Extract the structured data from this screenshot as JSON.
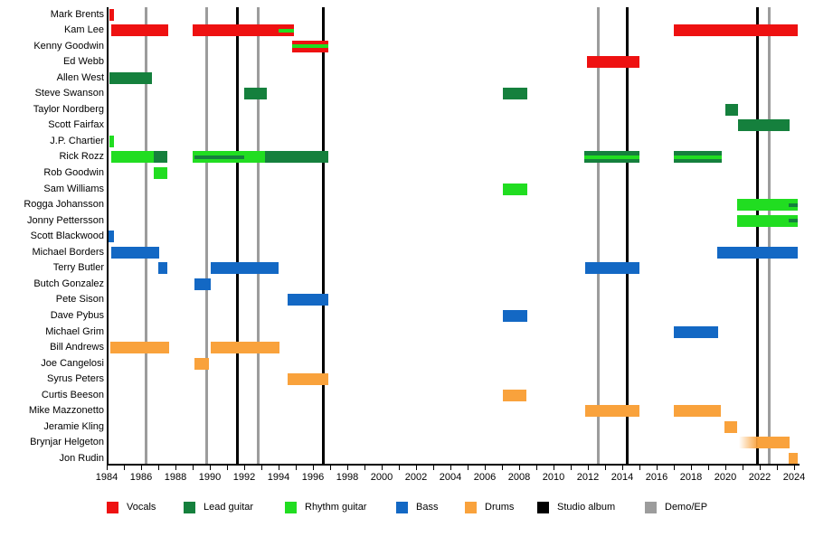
{
  "chart_data": {
    "type": "bar",
    "subtype": "horizontal-range-timeline (band lineup gantt)",
    "title": "",
    "xlabel": "",
    "ylabel": "",
    "grid": "vertical event lines only",
    "legend_position": "bottom",
    "x_axis": {
      "min": 1984,
      "max": 2024,
      "labeled_tick_step": 2,
      "minor_tick_step": 1,
      "tick_labels": [
        "1984",
        "1986",
        "1988",
        "1990",
        "1992",
        "1994",
        "1996",
        "1998",
        "2000",
        "2002",
        "2004",
        "2006",
        "2008",
        "2010",
        "2012",
        "2014",
        "2016",
        "2018",
        "2020",
        "2022",
        "2024"
      ]
    },
    "role_colors": {
      "vocals": "#ee1111",
      "lead": "#15803d",
      "rhythm": "#21dd21",
      "bass": "#1368c4",
      "drums": "#f9a23c"
    },
    "event_lines": {
      "studio_album": {
        "color": "#000000",
        "years": [
          1991.6,
          1996.6,
          2014.3,
          2021.85
        ]
      },
      "demo_ep": {
        "color": "#9c9c9c",
        "years": [
          1986.3,
          1989.8,
          1992.8,
          2012.6,
          2022.55
        ]
      }
    },
    "legend": [
      {
        "label": "Vocals",
        "color": "#ee1111"
      },
      {
        "label": "Lead guitar",
        "color": "#15803d"
      },
      {
        "label": "Rhythm guitar",
        "color": "#21dd21"
      },
      {
        "label": "Bass",
        "color": "#1368c4"
      },
      {
        "label": "Drums",
        "color": "#f9a23c"
      },
      {
        "label": "Studio album",
        "color": "#000000"
      },
      {
        "label": "Demo/EP",
        "color": "#9c9c9c"
      }
    ],
    "members": [
      {
        "name": "Mark Brents",
        "segments": [
          {
            "role": "vocals",
            "start": 1984.15,
            "end": 1984.4
          }
        ]
      },
      {
        "name": "Kam Lee",
        "segments": [
          {
            "role": "vocals",
            "start": 1984.25,
            "end": 1987.6
          },
          {
            "role": "vocals",
            "start": 1989.0,
            "end": 1994.9,
            "overlay": {
              "role": "rhythm",
              "start": 1994.0,
              "end": 1994.9
            }
          },
          {
            "role": "vocals",
            "start": 2017.0,
            "end": 2024.2
          }
        ]
      },
      {
        "name": "Kenny Goodwin",
        "segments": [
          {
            "role": "vocals",
            "start": 1994.8,
            "end": 1996.9,
            "overlay": {
              "role": "rhythm",
              "start": 1994.8,
              "end": 1996.9
            }
          }
        ]
      },
      {
        "name": "Ed Webb",
        "segments": [
          {
            "role": "vocals",
            "start": 2011.95,
            "end": 2015.0
          }
        ]
      },
      {
        "name": "Allen West",
        "segments": [
          {
            "role": "lead",
            "start": 1984.15,
            "end": 1986.65
          }
        ]
      },
      {
        "name": "Steve Swanson",
        "segments": [
          {
            "role": "lead",
            "start": 1992.0,
            "end": 1993.3
          },
          {
            "role": "lead",
            "start": 2007.05,
            "end": 2008.45
          }
        ]
      },
      {
        "name": "Taylor Nordberg",
        "segments": [
          {
            "role": "lead",
            "start": 2020.0,
            "end": 2020.75
          }
        ]
      },
      {
        "name": "Scott Fairfax",
        "segments": [
          {
            "role": "lead",
            "start": 2020.75,
            "end": 2023.75
          }
        ]
      },
      {
        "name": "J.P. Chartier",
        "segments": [
          {
            "role": "rhythm",
            "start": 1984.15,
            "end": 1984.4
          }
        ]
      },
      {
        "name": "Rick Rozz",
        "segments": [
          {
            "role": "rhythm",
            "start": 1984.25,
            "end": 1986.75
          },
          {
            "role": "lead",
            "start": 1986.75,
            "end": 1987.5
          },
          {
            "role": "rhythm",
            "start": 1989.0,
            "end": 1993.2,
            "overlay": {
              "role": "lead",
              "start": 1989.1,
              "end": 1992.0
            }
          },
          {
            "role": "lead",
            "start": 1993.2,
            "end": 1996.9
          },
          {
            "role": "lead",
            "start": 2011.8,
            "end": 2015.0,
            "overlay": {
              "role": "rhythm",
              "start": 2011.8,
              "end": 2015.0
            }
          },
          {
            "role": "lead",
            "start": 2017.0,
            "end": 2019.8,
            "overlay": {
              "role": "rhythm",
              "start": 2017.0,
              "end": 2019.8
            }
          }
        ]
      },
      {
        "name": "Rob Goodwin",
        "segments": [
          {
            "role": "rhythm",
            "start": 1986.75,
            "end": 1987.5
          }
        ]
      },
      {
        "name": "Sam Williams",
        "segments": [
          {
            "role": "rhythm",
            "start": 2007.05,
            "end": 2008.45
          }
        ]
      },
      {
        "name": "Rogga Johansson",
        "segments": [
          {
            "role": "rhythm",
            "start": 2020.7,
            "end": 2024.2,
            "overlay": {
              "role": "lead",
              "start": 2023.7,
              "end": 2024.2
            }
          }
        ]
      },
      {
        "name": "Jonny Pettersson",
        "segments": [
          {
            "role": "rhythm",
            "start": 2020.7,
            "end": 2024.2,
            "overlay": {
              "role": "lead",
              "start": 2023.7,
              "end": 2024.2
            }
          }
        ]
      },
      {
        "name": "Scott Blackwood",
        "segments": [
          {
            "role": "bass",
            "start": 1984.1,
            "end": 1984.4
          }
        ]
      },
      {
        "name": "Michael Borders",
        "segments": [
          {
            "role": "bass",
            "start": 1984.25,
            "end": 1987.05
          },
          {
            "role": "bass",
            "start": 2019.55,
            "end": 2024.2
          }
        ]
      },
      {
        "name": "Terry Butler",
        "segments": [
          {
            "role": "bass",
            "start": 1987.0,
            "end": 1987.55
          },
          {
            "role": "bass",
            "start": 1990.05,
            "end": 1994.0
          },
          {
            "role": "bass",
            "start": 2011.85,
            "end": 2015.0
          }
        ]
      },
      {
        "name": "Butch Gonzalez",
        "segments": [
          {
            "role": "bass",
            "start": 1989.1,
            "end": 1990.05
          }
        ]
      },
      {
        "name": "Pete Sison",
        "segments": [
          {
            "role": "bass",
            "start": 1994.5,
            "end": 1996.9
          }
        ]
      },
      {
        "name": "Dave Pybus",
        "segments": [
          {
            "role": "bass",
            "start": 2007.05,
            "end": 2008.45
          }
        ]
      },
      {
        "name": "Michael Grim",
        "segments": [
          {
            "role": "bass",
            "start": 2017.0,
            "end": 2019.6
          }
        ]
      },
      {
        "name": "Bill Andrews",
        "segments": [
          {
            "role": "drums",
            "start": 1984.2,
            "end": 1987.65
          },
          {
            "role": "drums",
            "start": 1990.05,
            "end": 1994.05
          }
        ]
      },
      {
        "name": "Joe Cangelosi",
        "segments": [
          {
            "role": "drums",
            "start": 1989.1,
            "end": 1989.95
          }
        ]
      },
      {
        "name": "Syrus Peters",
        "segments": [
          {
            "role": "drums",
            "start": 1994.5,
            "end": 1996.9
          }
        ]
      },
      {
        "name": "Curtis Beeson",
        "segments": [
          {
            "role": "drums",
            "start": 2007.05,
            "end": 2008.4
          }
        ]
      },
      {
        "name": "Mike Mazzonetto",
        "segments": [
          {
            "role": "drums",
            "start": 2011.85,
            "end": 2015.0
          },
          {
            "role": "drums",
            "start": 2017.0,
            "end": 2019.75
          }
        ]
      },
      {
        "name": "Jeramie Kling",
        "segments": [
          {
            "role": "drums",
            "start": 2019.95,
            "end": 2020.7
          }
        ]
      },
      {
        "name": "Brynjar Helgeton",
        "segments": [
          {
            "role": "drums",
            "start": 2020.8,
            "end": 2023.75,
            "fade_left": true
          }
        ]
      },
      {
        "name": "Jon Rudin",
        "segments": [
          {
            "role": "drums",
            "start": 2023.7,
            "end": 2024.2
          }
        ]
      }
    ]
  }
}
